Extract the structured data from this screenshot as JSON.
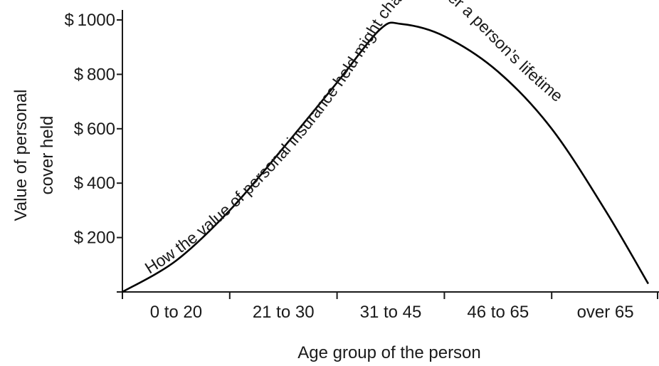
{
  "chart_data": {
    "type": "line",
    "title": "",
    "xlabel": "Age group of the person",
    "ylabel_lines": [
      "Value of personal",
      "cover held"
    ],
    "categories": [
      "0 to 20",
      "21 to 30",
      "31 to 45",
      "46 to 65",
      "over 65"
    ],
    "y_ticks": [
      {
        "value": 200,
        "label": "$ 200"
      },
      {
        "value": 400,
        "label": "$ 400"
      },
      {
        "value": 600,
        "label": "$ 600"
      },
      {
        "value": 800,
        "label": "$ 800"
      },
      {
        "value": 1000,
        "label": "$ 1000"
      }
    ],
    "ylim": [
      0,
      1000
    ],
    "xlim": [
      0,
      5
    ],
    "grid": false,
    "curve_label": "How the value of personal insurance held might change over a person’s lifetime",
    "series": [
      {
        "x": [
          0.0,
          0.5,
          1.0,
          1.5,
          2.0,
          2.4,
          2.6,
          3.0,
          3.5,
          4.0,
          4.5,
          4.9
        ],
        "y": [
          0,
          115,
          300,
          530,
          770,
          965,
          985,
          940,
          810,
          600,
          300,
          30
        ]
      }
    ]
  }
}
